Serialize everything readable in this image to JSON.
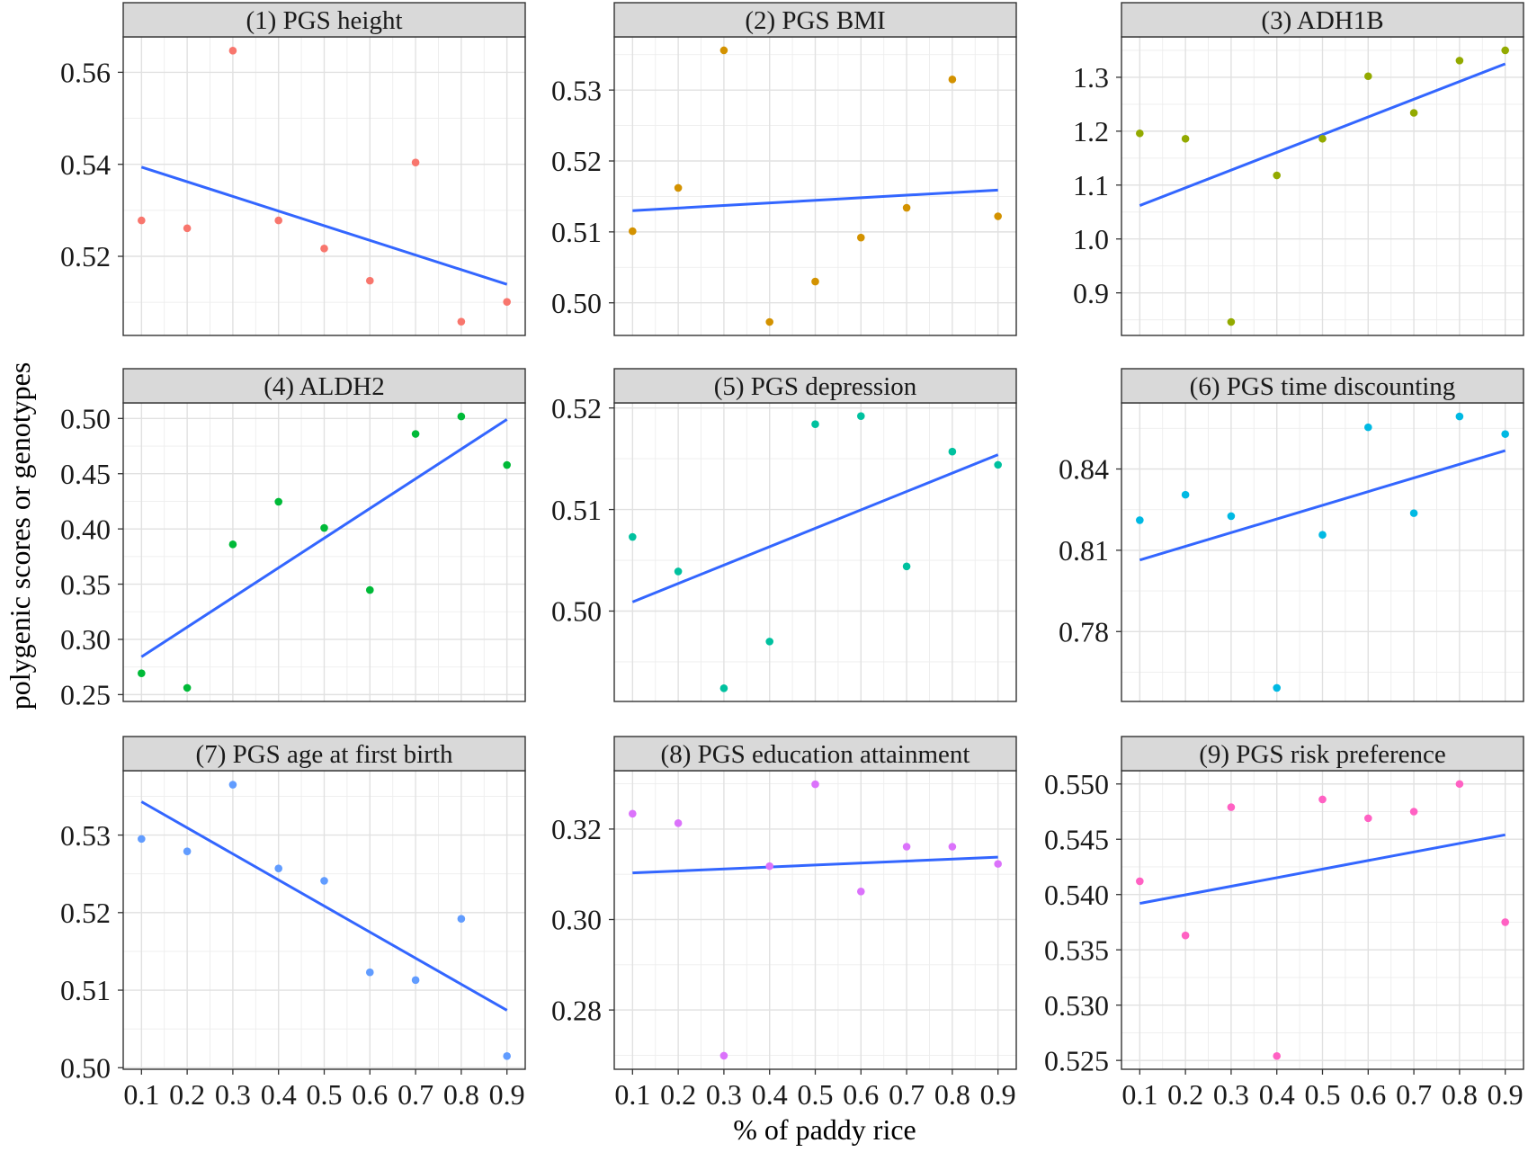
{
  "chart_data": {
    "type": "scatter",
    "xlabel": "% of paddy rice",
    "ylabel": "polygenic scores or genotypes",
    "x": [
      0.1,
      0.2,
      0.3,
      0.4,
      0.5,
      0.6,
      0.7,
      0.8,
      0.9
    ],
    "xtick_labels": [
      "0.1",
      "0.2",
      "0.3",
      "0.4",
      "0.5",
      "0.6",
      "0.7",
      "0.8",
      "0.9"
    ],
    "xlim": [
      0.06,
      0.94
    ],
    "grid": true,
    "fit_line_color": "#3366FF",
    "panels": [
      {
        "title": "(1) PGS height",
        "color": "#F8766D",
        "y": [
          0.5278,
          0.5261,
          0.5647,
          0.5278,
          0.5217,
          0.5147,
          0.5404,
          0.5058,
          0.5101
        ],
        "fit": {
          "x": [
            0.1,
            0.9
          ],
          "y": [
            0.5394,
            0.5139
          ]
        },
        "ylim": [
          0.5028,
          0.5677
        ],
        "yticks": [
          0.52,
          0.54,
          0.56
        ],
        "ytick_labels": [
          "0.52",
          "0.54",
          "0.56"
        ]
      },
      {
        "title": "(2) PGS BMI",
        "color": "#D39200",
        "y": [
          0.5101,
          0.5162,
          0.5356,
          0.4973,
          0.503,
          0.5092,
          0.5134,
          0.5315,
          0.5122
        ],
        "fit": {
          "x": [
            0.1,
            0.9
          ],
          "y": [
            0.513,
            0.5159
          ]
        },
        "ylim": [
          0.4954,
          0.5375
        ],
        "yticks": [
          0.5,
          0.51,
          0.52,
          0.53
        ],
        "ytick_labels": [
          "0.50",
          "0.51",
          "0.52",
          "0.53"
        ]
      },
      {
        "title": "(3) ADH1B",
        "color": "#93AA00",
        "y": [
          1.196,
          1.186,
          0.846,
          1.118,
          1.186,
          1.302,
          1.234,
          1.331,
          1.35
        ],
        "fit": {
          "x": [
            0.1,
            0.9
          ],
          "y": [
            1.062,
            1.325
          ]
        },
        "ylim": [
          0.821,
          1.375
        ],
        "yticks": [
          0.9,
          1.0,
          1.1,
          1.2,
          1.3
        ],
        "ytick_labels": [
          "0.9",
          "1.0",
          "1.1",
          "1.2",
          "1.3"
        ]
      },
      {
        "title": "(4) ALDH2",
        "color": "#00BA38",
        "y": [
          0.2693,
          0.2561,
          0.386,
          0.4246,
          0.4009,
          0.3447,
          0.486,
          0.5018,
          0.4579
        ],
        "fit": {
          "x": [
            0.1,
            0.9
          ],
          "y": [
            0.2842,
            0.4991
          ]
        },
        "ylim": [
          0.2438,
          0.5141
        ],
        "yticks": [
          0.25,
          0.3,
          0.35,
          0.4,
          0.45,
          0.5
        ],
        "ytick_labels": [
          "0.25",
          "0.30",
          "0.35",
          "0.40",
          "0.45",
          "0.50"
        ]
      },
      {
        "title": "(5) PGS depression",
        "color": "#00C19F",
        "y": [
          0.5073,
          0.5039,
          0.4924,
          0.497,
          0.5184,
          0.5192,
          0.5044,
          0.5157,
          0.5144
        ],
        "fit": {
          "x": [
            0.1,
            0.9
          ],
          "y": [
            0.5009,
            0.5154
          ]
        },
        "ylim": [
          0.4911,
          0.5205
        ],
        "yticks": [
          0.5,
          0.51,
          0.52
        ],
        "ytick_labels": [
          "0.50",
          "0.51",
          "0.52"
        ]
      },
      {
        "title": "(6) PGS time discounting",
        "color": "#00B9E3",
        "y": [
          0.8211,
          0.8305,
          0.8226,
          0.7592,
          0.8157,
          0.8554,
          0.8237,
          0.8594,
          0.8529
        ],
        "fit": {
          "x": [
            0.1,
            0.9
          ],
          "y": [
            0.8064,
            0.8468
          ]
        },
        "ylim": [
          0.7542,
          0.8644
        ],
        "yticks": [
          0.78,
          0.81,
          0.84
        ],
        "ytick_labels": [
          "0.78",
          "0.81",
          "0.84"
        ]
      },
      {
        "title": "(7) PGS age at first birth",
        "color": "#619CFF",
        "y": [
          0.5295,
          0.5279,
          0.5365,
          0.5257,
          0.5241,
          0.5123,
          0.5113,
          0.5192,
          0.5015
        ],
        "fit": {
          "x": [
            0.1,
            0.9
          ],
          "y": [
            0.5343,
            0.5074
          ]
        },
        "ylim": [
          0.4998,
          0.5383
        ],
        "yticks": [
          0.5,
          0.51,
          0.52,
          0.53
        ],
        "ytick_labels": [
          "0.50",
          "0.51",
          "0.52",
          "0.53"
        ]
      },
      {
        "title": "(8) PGS education attainment",
        "color": "#DB72FB",
        "y": [
          0.3234,
          0.3213,
          0.2699,
          0.3118,
          0.3299,
          0.3062,
          0.3161,
          0.3161,
          0.3123
        ],
        "fit": {
          "x": [
            0.1,
            0.9
          ],
          "y": [
            0.3103,
            0.3138
          ]
        },
        "ylim": [
          0.2669,
          0.3329
        ],
        "yticks": [
          0.28,
          0.3,
          0.32
        ],
        "ytick_labels": [
          "0.28",
          "0.30",
          "0.32"
        ]
      },
      {
        "title": "(9) PGS risk preference",
        "color": "#FF61C3",
        "y": [
          0.5412,
          0.5363,
          0.5479,
          0.5254,
          0.5486,
          0.5469,
          0.5475,
          0.55,
          0.5375
        ],
        "fit": {
          "x": [
            0.1,
            0.9
          ],
          "y": [
            0.5392,
            0.5454
          ]
        },
        "ylim": [
          0.5242,
          0.5512
        ],
        "yticks": [
          0.525,
          0.53,
          0.535,
          0.54,
          0.545,
          0.55
        ],
        "ytick_labels": [
          "0.525",
          "0.530",
          "0.535",
          "0.540",
          "0.545",
          "0.550"
        ]
      }
    ]
  }
}
